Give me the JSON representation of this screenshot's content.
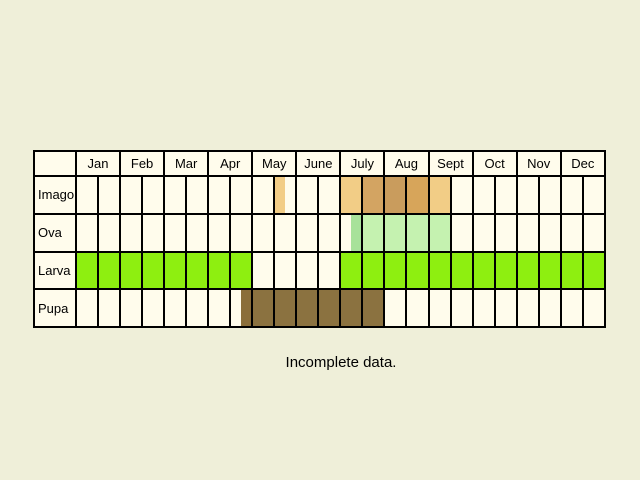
{
  "months": [
    "Jan",
    "Feb",
    "Mar",
    "Apr",
    "May",
    "June",
    "July",
    "Aug",
    "Sept",
    "Oct",
    "Nov",
    "Dec"
  ],
  "stages": [
    {
      "label": "Imago",
      "activity": [
        {
          "start": 4.5,
          "end": 4.75,
          "color": "#f2cd86"
        },
        {
          "start": 6.0,
          "end": 6.5,
          "color": "#f2cd86"
        },
        {
          "start": 6.5,
          "end": 7.0,
          "color": "#d3a462"
        },
        {
          "start": 7.0,
          "end": 7.5,
          "color": "#c99c5d"
        },
        {
          "start": 7.5,
          "end": 8.0,
          "color": "#d7a55a"
        },
        {
          "start": 8.0,
          "end": 8.5,
          "color": "#f2cd86"
        }
      ]
    },
    {
      "label": "Ova",
      "activity": [
        {
          "start": 6.25,
          "end": 6.5,
          "color": "#a8e29a"
        },
        {
          "start": 6.5,
          "end": 8.5,
          "color": "#c5f2b0"
        }
      ]
    },
    {
      "label": "Larva",
      "activity": [
        {
          "start": 0.0,
          "end": 4.0,
          "color": "#8eef10"
        },
        {
          "start": 6.0,
          "end": 12.0,
          "color": "#8eef10"
        }
      ]
    },
    {
      "label": "Pupa",
      "activity": [
        {
          "start": 3.75,
          "end": 4.0,
          "color": "#8a6e3a"
        },
        {
          "start": 4.0,
          "end": 7.0,
          "color": "#8b7240"
        }
      ]
    }
  ],
  "caption": "Incomplete data."
}
